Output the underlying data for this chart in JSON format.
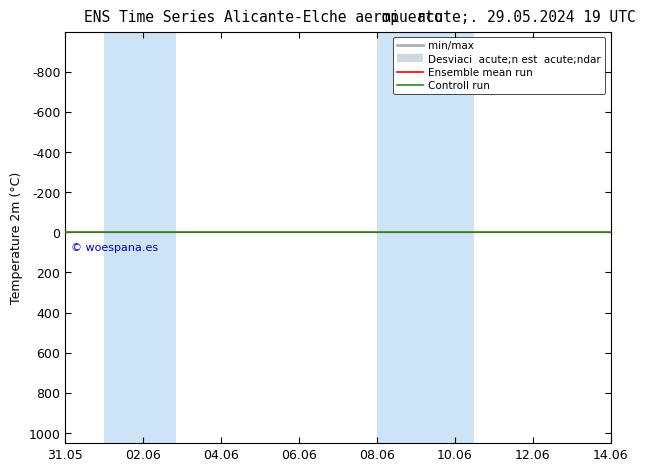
{
  "title_left": "ENS Time Series Alicante-Elche aeropuerto",
  "title_right": "mi  acute;. 29.05.2024 19 UTC",
  "ylabel": "Temperature 2m (°C)",
  "ylim_top": -1000,
  "ylim_bottom": 1050,
  "yticks": [
    -800,
    -600,
    -400,
    -200,
    0,
    200,
    400,
    600,
    800,
    1000
  ],
  "xtick_labels": [
    "31.05",
    "02.06",
    "04.06",
    "06.06",
    "08.06",
    "10.06",
    "12.06",
    "14.06"
  ],
  "xtick_positions": [
    0,
    2,
    4,
    6,
    8,
    10,
    12,
    14
  ],
  "shaded_bands": [
    {
      "xstart": 1.0,
      "xend": 1.85
    },
    {
      "xstart": 1.85,
      "xend": 2.85
    },
    {
      "xstart": 8.0,
      "xend": 9.0
    },
    {
      "xstart": 9.0,
      "xend": 10.5
    }
  ],
  "watermark": "© woespana.es",
  "legend_labels": [
    "min/max",
    "Desviaci  acute;n est  acute;ndar",
    "Ensemble mean run",
    "Controll run"
  ],
  "line_y_value": 0,
  "ensemble_mean_color": "#ff0000",
  "control_run_color": "#228B22",
  "minmax_color": "#b0b0b0",
  "stddev_color": "#d0d8e0",
  "band_color": "#cce4f5",
  "background_color": "#ffffff",
  "title_fontsize": 10.5,
  "axis_label_fontsize": 9,
  "legend_fontsize": 7.5
}
